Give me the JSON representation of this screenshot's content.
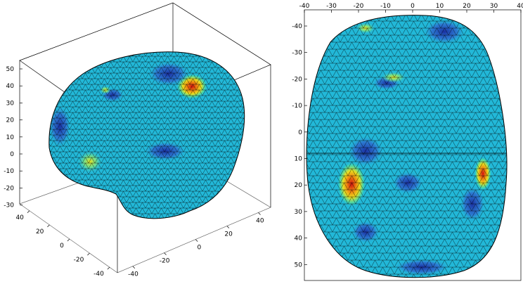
{
  "left_view": {
    "z_ticks": [
      "50",
      "40",
      "30",
      "20",
      "10",
      "0",
      "-10",
      "-20",
      "-30"
    ],
    "x_ticks": [
      "40",
      "20",
      "0",
      "-20",
      "-40"
    ],
    "y_ticks": [
      "-40",
      "-20",
      "0",
      "20",
      "40"
    ]
  },
  "right_view": {
    "top_ticks": [
      "-40",
      "-30",
      "-20",
      "-10",
      "0",
      "10",
      "20",
      "30",
      "40"
    ],
    "left_ticks": [
      "-40",
      "-30",
      "-20",
      "-10",
      "0",
      "10",
      "20",
      "30",
      "40",
      "50"
    ]
  },
  "colors": {
    "base": "#22b8d8",
    "low": "#1e3fb4",
    "mid": "#4ee0a0",
    "high": "#e8e020",
    "peak": "#d01010",
    "mesh": "#000000"
  }
}
